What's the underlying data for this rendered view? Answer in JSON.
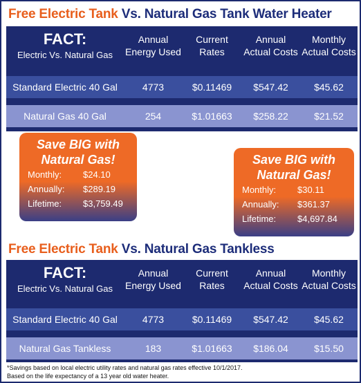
{
  "section1": {
    "heading_orange": "Free Electric Tank",
    "heading_navy": "Vs. Natural Gas Tank Water Heater",
    "fact_title": "FACT:",
    "fact_subtitle": "Electric Vs. Natural Gas",
    "columns": [
      "Annual Energy Used",
      "Current Rates",
      "Annual Actual Costs",
      "Monthly Actual Costs"
    ],
    "rows": [
      [
        "Standard Electric 40 Gal",
        "4773",
        "$0.11469",
        "$547.42",
        "$45.62"
      ],
      [
        "Natural Gas 40 Gal",
        "254",
        "$1.01663",
        "$258.22",
        "$21.52"
      ]
    ]
  },
  "savings_box_1": {
    "title_line1": "Save BIG with",
    "title_line2": "Natural Gas!",
    "monthly_label": "Monthly:",
    "monthly_value": "$24.10",
    "annually_label": "Annually:",
    "annually_value": "$289.19",
    "lifetime_label": "Lifetime:",
    "lifetime_value": "$3,759.49"
  },
  "savings_box_2": {
    "title_line1": "Save BIG with",
    "title_line2": "Natural Gas!",
    "monthly_label": "Monthly:",
    "monthly_value": "$30.11",
    "annually_label": "Annually:",
    "annually_value": "$361.37",
    "lifetime_label": "Lifetime:",
    "lifetime_value": "$4,697.84"
  },
  "section2": {
    "heading_orange": "Free Electric Tank",
    "heading_navy": "Vs. Natural Gas Tankless",
    "fact_title": "FACT:",
    "fact_subtitle": "Electric Vs. Natural Gas",
    "columns": [
      "Annual Energy Used",
      "Current Rates",
      "Annual Actual Costs",
      "Monthly Actual Costs"
    ],
    "rows": [
      [
        "Standard Electric 40 Gal",
        "4773",
        "$0.11469",
        "$547.42",
        "$45.62"
      ],
      [
        "Natural Gas Tankless",
        "183",
        "$1.01663",
        "$186.04",
        "$15.50"
      ]
    ]
  },
  "footnote": {
    "line1": "*Savings based on local electric utility rates and natural gas rates effective 10/1/2017.",
    "line2": "Based on the life expectancy of a 13 year old water heater."
  },
  "colors": {
    "orange": "#e85e1c",
    "navy": "#1d2a6f",
    "row_dark": "#3a4f9e",
    "row_light": "#8a94d0"
  }
}
